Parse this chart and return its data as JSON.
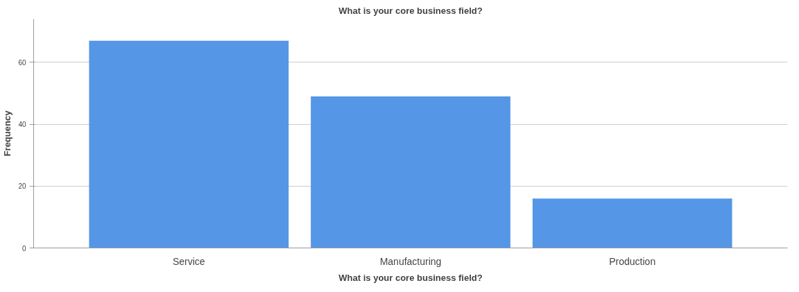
{
  "chart_data": {
    "type": "bar",
    "title": "What is your core business field?",
    "xlabel": "What is your core business field?",
    "ylabel": "Frequency",
    "categories": [
      "Service",
      "Manufacturing",
      "Production"
    ],
    "values": [
      67,
      49,
      16
    ],
    "color": "#5596e6",
    "ylim": [
      0,
      74
    ],
    "yticks": [
      0,
      20,
      40,
      60
    ],
    "grid": "y"
  }
}
